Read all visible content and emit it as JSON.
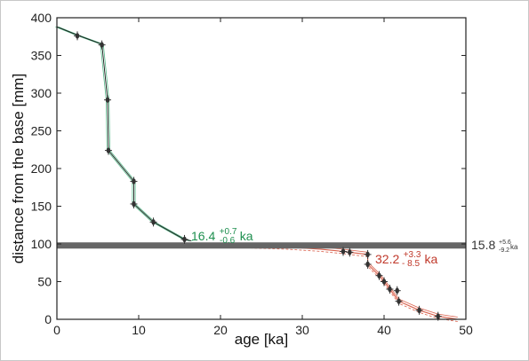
{
  "chart_data": {
    "type": "scatter",
    "xlabel": "age [ka]",
    "ylabel": "distance from the base [mm]",
    "xlim": [
      0,
      50
    ],
    "ylim": [
      0,
      400
    ],
    "xticks": [
      "0",
      "10",
      "20",
      "30",
      "40",
      "50"
    ],
    "yticks": [
      "0",
      "50",
      "100",
      "150",
      "200",
      "250",
      "300",
      "350",
      "400"
    ],
    "grid": false,
    "colors": {
      "upper": "#2ca66b",
      "lower": "#d9604c",
      "hiatus": "#666666",
      "points": "#333333"
    },
    "hiatus": {
      "y": 98,
      "annotation": {
        "value": "15.8",
        "sup": "+5.6",
        "sub": "-9.2",
        "unit": "ka"
      }
    },
    "upper_series": {
      "points": [
        {
          "x": 2.5,
          "y": 376
        },
        {
          "x": 5.5,
          "y": 364
        },
        {
          "x": 6.2,
          "y": 291
        },
        {
          "x": 6.3,
          "y": 224
        },
        {
          "x": 9.4,
          "y": 183
        },
        {
          "x": 9.4,
          "y": 153
        },
        {
          "x": 11.8,
          "y": 129
        },
        {
          "x": 15.6,
          "y": 106
        }
      ],
      "model_line": [
        [
          0,
          388
        ],
        [
          2.5,
          377
        ],
        [
          5.5,
          365
        ],
        [
          6.2,
          291
        ],
        [
          6.3,
          224
        ],
        [
          9.4,
          183
        ],
        [
          9.4,
          153
        ],
        [
          11.8,
          129
        ],
        [
          15.6,
          106
        ],
        [
          16.4,
          104
        ]
      ],
      "annotation": {
        "value": "16.4",
        "sup": "+0.7",
        "sub": "-0.6",
        "unit": "ka"
      }
    },
    "lower_series": {
      "points": [
        {
          "x": 35.0,
          "y": 90
        },
        {
          "x": 35.8,
          "y": 89
        },
        {
          "x": 38.0,
          "y": 86
        },
        {
          "x": 38.0,
          "y": 73
        },
        {
          "x": 39.4,
          "y": 58
        },
        {
          "x": 40.0,
          "y": 50
        },
        {
          "x": 40.7,
          "y": 40
        },
        {
          "x": 41.6,
          "y": 38
        },
        {
          "x": 41.8,
          "y": 24
        },
        {
          "x": 44.3,
          "y": 12
        },
        {
          "x": 46.6,
          "y": 4
        }
      ],
      "model_line": [
        [
          22,
          98
        ],
        [
          28,
          96
        ],
        [
          32.2,
          93
        ],
        [
          35.0,
          90
        ],
        [
          35.8,
          89
        ],
        [
          38.0,
          86
        ],
        [
          38.0,
          73
        ],
        [
          39.4,
          58
        ],
        [
          40.0,
          50
        ],
        [
          40.7,
          40
        ],
        [
          41.8,
          24
        ],
        [
          44.3,
          12
        ],
        [
          46.6,
          4
        ],
        [
          49.0,
          0
        ]
      ],
      "annotation": {
        "value": "32.2",
        "sup": "+3.3",
        "sub": "- 8.5",
        "unit": "ka"
      }
    }
  }
}
